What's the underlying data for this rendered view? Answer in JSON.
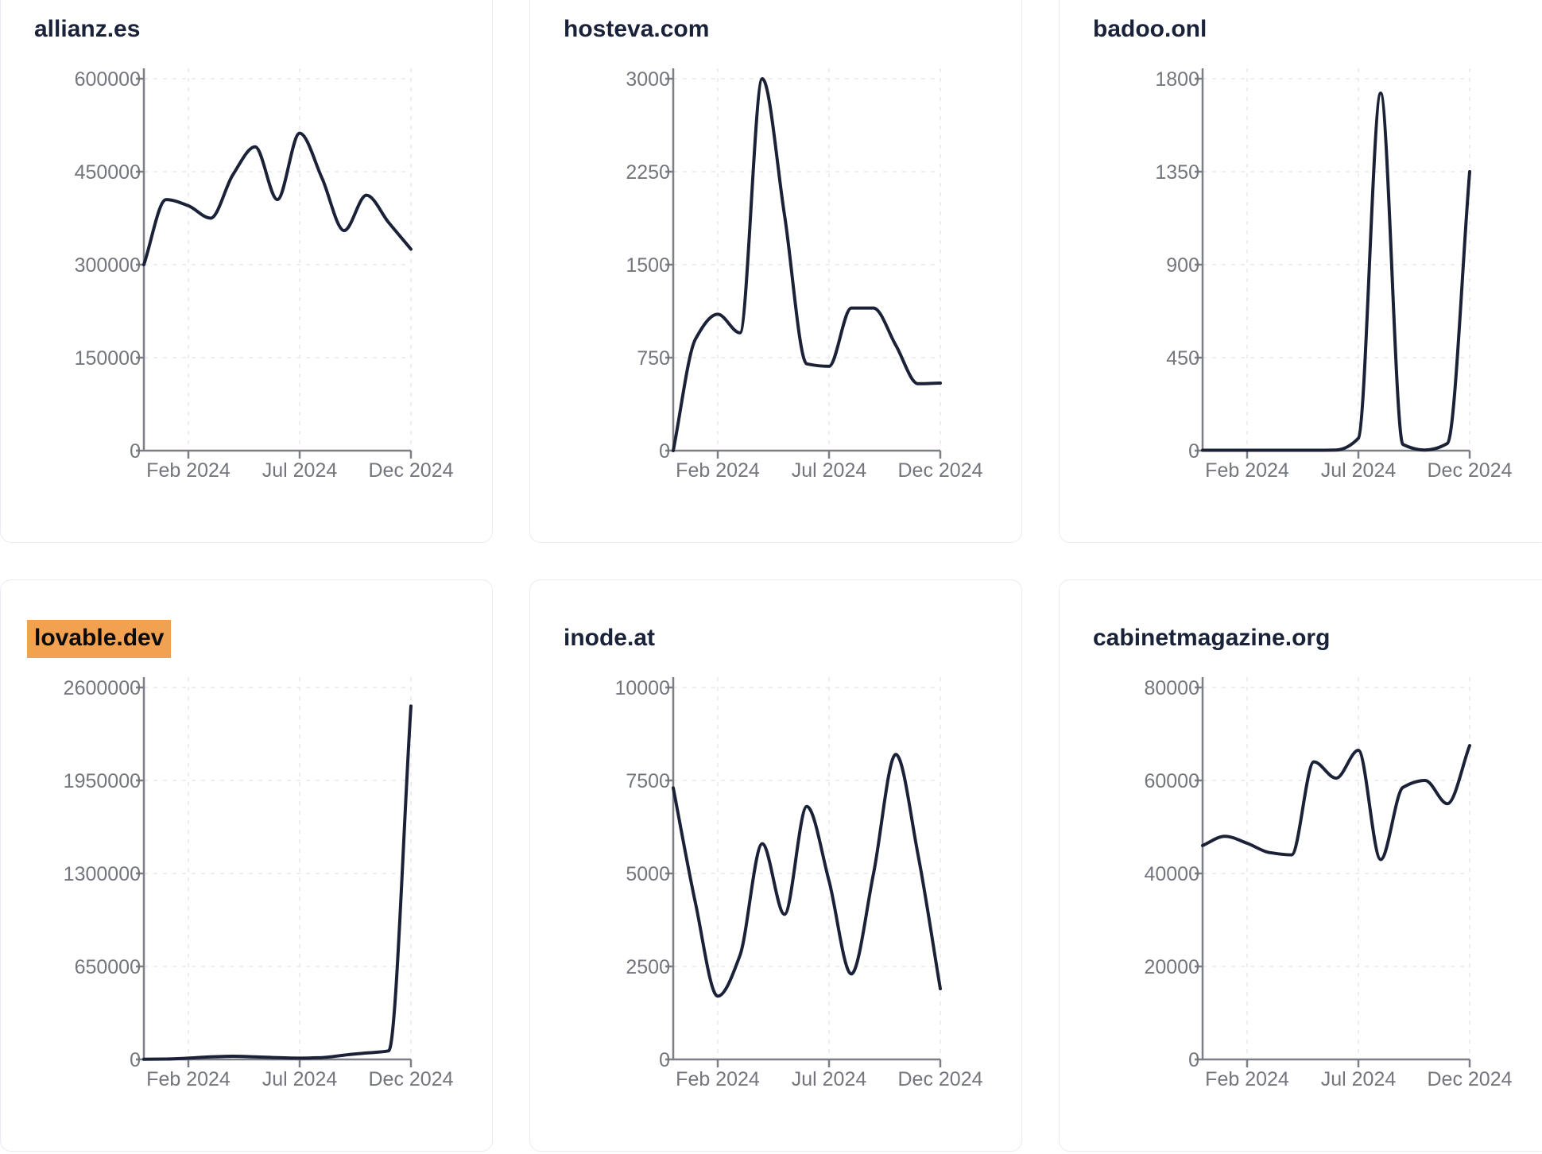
{
  "style": {
    "page_bg": "#ffffff",
    "card_bg": "#ffffff",
    "card_border": "#e9ebf2",
    "title_color": "#1a2239",
    "line_color": "#1b2238",
    "axis_color": "#7c7f86",
    "tick_label_color": "#73767d",
    "grid_color": "#e9e9eb",
    "highlight_bg": "#f1a150",
    "highlight_text": "#0b0b0b"
  },
  "x_axis": {
    "tick_labels": [
      "Feb 2024",
      "Jul 2024",
      "Dec 2024"
    ],
    "tick_month_index": [
      2,
      7,
      12
    ]
  },
  "chart_data": [
    {
      "type": "line",
      "title": "allianz.es",
      "highlighted": false,
      "x": [
        "Dec 2023",
        "Jan 2024",
        "Feb 2024",
        "Mar 2024",
        "Apr 2024",
        "May 2024",
        "Jun 2024",
        "Jul 2024",
        "Aug 2024",
        "Sep 2024",
        "Oct 2024",
        "Nov 2024",
        "Dec 2024"
      ],
      "values": [
        300000,
        405000,
        395000,
        375000,
        445000,
        490000,
        405000,
        512000,
        440000,
        355000,
        412000,
        368000,
        325000
      ],
      "ylim": [
        0,
        600000
      ],
      "y_ticks": [
        0,
        150000,
        300000,
        450000,
        600000
      ],
      "x_tick_labels": [
        "Feb 2024",
        "Jul 2024",
        "Dec 2024"
      ],
      "grid": "dashed",
      "legend": false
    },
    {
      "type": "line",
      "title": "hosteva.com",
      "highlighted": false,
      "x": [
        "Dec 2023",
        "Jan 2024",
        "Feb 2024",
        "Mar 2024",
        "Apr 2024",
        "May 2024",
        "Jun 2024",
        "Jul 2024",
        "Aug 2024",
        "Sep 2024",
        "Oct 2024",
        "Nov 2024",
        "Dec 2024"
      ],
      "values": [
        0,
        900,
        1100,
        950,
        3000,
        1900,
        700,
        680,
        1150,
        1150,
        850,
        540,
        545
      ],
      "ylim": [
        0,
        3000
      ],
      "y_ticks": [
        0,
        750,
        1500,
        2250,
        3000
      ],
      "x_tick_labels": [
        "Feb 2024",
        "Jul 2024",
        "Dec 2024"
      ],
      "grid": "dashed",
      "legend": false
    },
    {
      "type": "line",
      "title": "badoo.onl",
      "highlighted": false,
      "x": [
        "Dec 2023",
        "Jan 2024",
        "Feb 2024",
        "Mar 2024",
        "Apr 2024",
        "May 2024",
        "Jun 2024",
        "Jul 2024",
        "Aug 2024",
        "Sep 2024",
        "Oct 2024",
        "Nov 2024",
        "Dec 2024"
      ],
      "values": [
        2,
        2,
        2,
        2,
        2,
        2,
        3,
        60,
        1730,
        30,
        3,
        35,
        1350
      ],
      "ylim": [
        0,
        1800
      ],
      "y_ticks": [
        0,
        450,
        900,
        1350,
        1800
      ],
      "x_tick_labels": [
        "Feb 2024",
        "Jul 2024",
        "Dec 2024"
      ],
      "grid": "dashed",
      "legend": false
    },
    {
      "type": "line",
      "title": "lovable.dev",
      "highlighted": true,
      "x": [
        "Dec 2023",
        "Jan 2024",
        "Feb 2024",
        "Mar 2024",
        "Apr 2024",
        "May 2024",
        "Jun 2024",
        "Jul 2024",
        "Aug 2024",
        "Sep 2024",
        "Oct 2024",
        "Nov 2024",
        "Dec 2024"
      ],
      "values": [
        1000,
        3000,
        9000,
        18000,
        22000,
        18000,
        12000,
        9000,
        13000,
        30000,
        45000,
        60000,
        2470000
      ],
      "ylim": [
        0,
        2600000
      ],
      "y_ticks": [
        0,
        650000,
        1300000,
        1950000,
        2600000
      ],
      "x_tick_labels": [
        "Feb 2024",
        "Jul 2024",
        "Dec 2024"
      ],
      "grid": "dashed",
      "legend": false
    },
    {
      "type": "line",
      "title": "inode.at",
      "highlighted": false,
      "x": [
        "Dec 2023",
        "Jan 2024",
        "Feb 2024",
        "Mar 2024",
        "Apr 2024",
        "May 2024",
        "Jun 2024",
        "Jul 2024",
        "Aug 2024",
        "Sep 2024",
        "Oct 2024",
        "Nov 2024",
        "Dec 2024"
      ],
      "values": [
        7300,
        4200,
        1700,
        2800,
        5800,
        3900,
        6800,
        4800,
        2300,
        5000,
        8200,
        5500,
        1900
      ],
      "ylim": [
        0,
        10000
      ],
      "y_ticks": [
        0,
        2500,
        5000,
        7500,
        10000
      ],
      "x_tick_labels": [
        "Feb 2024",
        "Jul 2024",
        "Dec 2024"
      ],
      "grid": "dashed",
      "legend": false
    },
    {
      "type": "line",
      "title": "cabinetmagazine.org",
      "highlighted": false,
      "x": [
        "Dec 2023",
        "Jan 2024",
        "Feb 2024",
        "Mar 2024",
        "Apr 2024",
        "May 2024",
        "Jun 2024",
        "Jul 2024",
        "Aug 2024",
        "Sep 2024",
        "Oct 2024",
        "Nov 2024",
        "Dec 2024"
      ],
      "values": [
        46000,
        48000,
        46500,
        44500,
        44000,
        64000,
        60500,
        66500,
        43000,
        58500,
        60000,
        55000,
        67500
      ],
      "ylim": [
        0,
        80000
      ],
      "y_ticks": [
        0,
        20000,
        40000,
        60000,
        80000
      ],
      "x_tick_labels": [
        "Feb 2024",
        "Jul 2024",
        "Dec 2024"
      ],
      "grid": "dashed",
      "legend": false
    }
  ]
}
